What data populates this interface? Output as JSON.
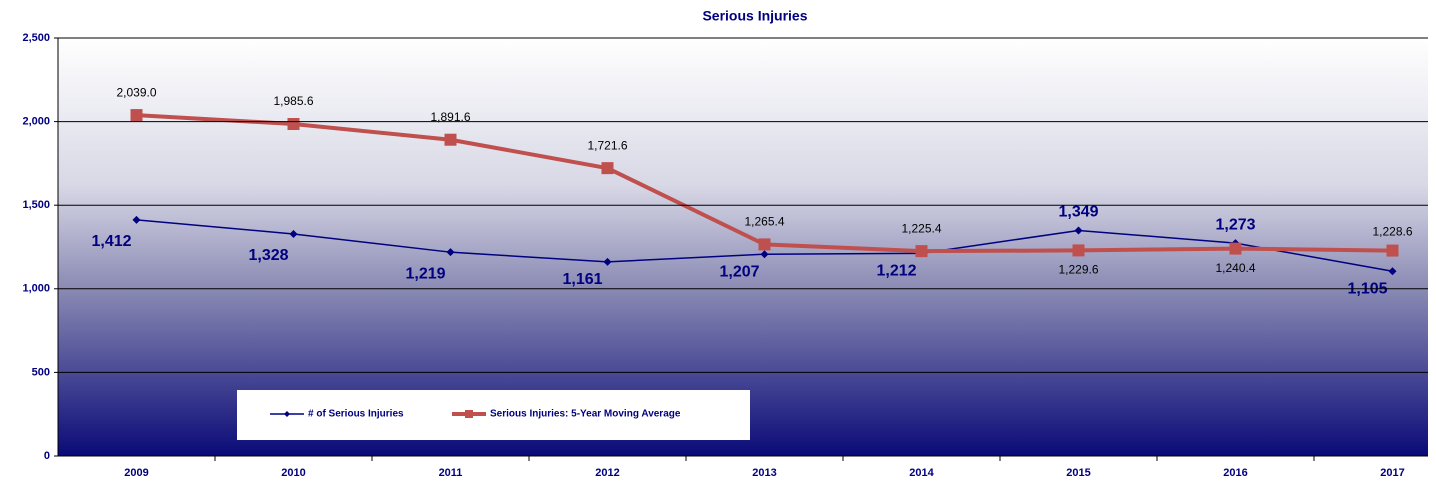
{
  "chart_data": {
    "type": "line",
    "title": "Serious Injuries",
    "categories": [
      "2009",
      "2010",
      "2011",
      "2012",
      "2013",
      "2014",
      "2015",
      "2016",
      "2017"
    ],
    "series": [
      {
        "name": "# of Serious Injuries",
        "color": "#000080",
        "values": [
          1412,
          1328,
          1219,
          1161,
          1207,
          1212,
          1349,
          1273,
          1105
        ],
        "value_labels": [
          "1,412",
          "1,328",
          "1,219",
          "1,161",
          "1,207",
          "1,212",
          "1,349",
          "1,273",
          "1,105"
        ]
      },
      {
        "name": "Serious Injuries: 5-Year Moving Average",
        "color": "#c0504d",
        "values": [
          2039.0,
          1985.6,
          1891.6,
          1721.6,
          1265.4,
          1225.4,
          1229.6,
          1240.4,
          1228.6
        ],
        "value_labels": [
          "2,039.0",
          "1,985.6",
          "1,891.6",
          "1,721.6",
          "1,265.4",
          "1,225.4",
          "1,229.6",
          "1,240.4",
          "1,228.6"
        ]
      }
    ],
    "ylim": [
      0,
      2500
    ],
    "yticks": [
      0,
      500,
      {
        "value": 1000,
        "label": "1,000"
      },
      {
        "value": 1500,
        "label": "1,500"
      },
      {
        "value": 2000,
        "label": "2,000"
      },
      {
        "value": 2500,
        "label": "2,500"
      }
    ],
    "grid": true,
    "legend": "bottom-left"
  }
}
